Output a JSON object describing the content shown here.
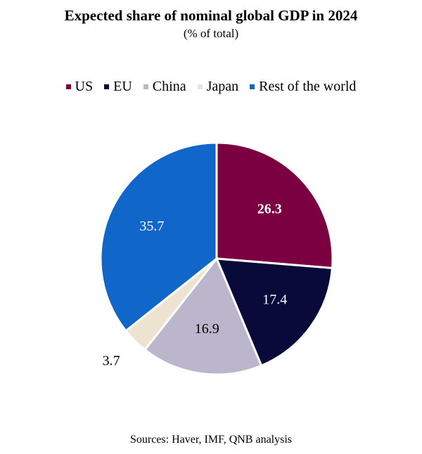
{
  "chart_data": {
    "type": "pie",
    "title": "Expected share of nominal global GDP in 2024",
    "subtitle": "(% of total)",
    "slices": [
      {
        "label": "US",
        "value": 26.3,
        "color": "#7b0041",
        "label_color": "#ffffff",
        "bold": true
      },
      {
        "label": "EU",
        "value": 17.4,
        "color": "#0a0a3a",
        "label_color": "#ffffff",
        "bold": false
      },
      {
        "label": "China",
        "value": 16.9,
        "color": "#bcb6cc",
        "label_color": "#000000",
        "bold": false
      },
      {
        "label": "Japan",
        "value": 3.7,
        "color": "#ede3d0",
        "label_color": "#000000",
        "bold": false
      },
      {
        "label": "Rest of the world",
        "value": 35.7,
        "color": "#1167c9",
        "label_color": "#ffffff",
        "bold": false
      }
    ],
    "legend_position": "top",
    "source": "Sources: Haver, IMF, QNB analysis"
  }
}
